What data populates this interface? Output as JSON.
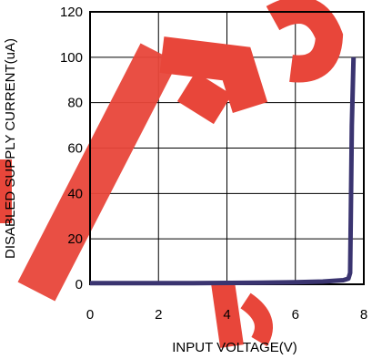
{
  "chart_data": {
    "type": "line",
    "xlabel": "INPUT VOLTAGE(V)",
    "ylabel": "DISABLED SUPPLY CURRENT(uA)",
    "xlim": [
      0,
      8
    ],
    "ylim": [
      0,
      120
    ],
    "x_ticks": [
      0,
      2,
      4,
      6,
      8
    ],
    "y_ticks": [
      0,
      20,
      40,
      60,
      80,
      100,
      120
    ],
    "x_tick_labels": [
      "0",
      "2",
      "4",
      "6",
      "8"
    ],
    "y_tick_labels": [
      "0",
      "20",
      "40",
      "60",
      "80",
      "100",
      "120"
    ],
    "grid": true,
    "series": [
      {
        "color": "#3a3470",
        "x": [
          0,
          1,
          2,
          3,
          4,
          5,
          6,
          6.8,
          7.4,
          7.55,
          7.6,
          7.62,
          7.65,
          7.7
        ],
        "y": [
          0.5,
          0.5,
          0.5,
          0.5,
          0.6,
          0.7,
          0.9,
          1.2,
          1.8,
          2.5,
          5,
          30,
          70,
          100
        ]
      }
    ],
    "watermark": {
      "text": "RECOMMENDED FOR NEW DESIGNS",
      "color": "#e8463a"
    }
  }
}
